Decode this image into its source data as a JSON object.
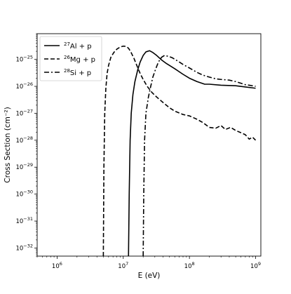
{
  "chart_data": {
    "type": "line",
    "title": "",
    "xlabel": "E (eV)",
    "ylabel": "Cross Section (cm⁻²)",
    "xscale": "log",
    "yscale": "log",
    "xlim": [
      500000,
      1200000000
    ],
    "ylim": [
      5e-33,
      9e-25
    ],
    "xticks": [
      {
        "value": 1000000,
        "mantissa": "10",
        "exp": "6"
      },
      {
        "value": 10000000,
        "mantissa": "10",
        "exp": "7"
      },
      {
        "value": 100000000,
        "mantissa": "10",
        "exp": "8"
      },
      {
        "value": 1000000000,
        "mantissa": "10",
        "exp": "9"
      }
    ],
    "yticks": [
      {
        "value": 1e-32,
        "mantissa": "10",
        "exp": "−32"
      },
      {
        "value": 1e-31,
        "mantissa": "10",
        "exp": "−31"
      },
      {
        "value": 1e-30,
        "mantissa": "10",
        "exp": "−30"
      },
      {
        "value": 1e-29,
        "mantissa": "10",
        "exp": "−29"
      },
      {
        "value": 1e-28,
        "mantissa": "10",
        "exp": "−28"
      },
      {
        "value": 1e-27,
        "mantissa": "10",
        "exp": "−27"
      },
      {
        "value": 1e-26,
        "mantissa": "10",
        "exp": "−26"
      },
      {
        "value": 1e-25,
        "mantissa": "10",
        "exp": "−25"
      }
    ],
    "grid": false,
    "legend_position": "top-left",
    "series": [
      {
        "name": "27Al + p",
        "label_sup": "27",
        "label_rest": "Al + p",
        "color": "#000000",
        "style": "solid",
        "x": [
          12000000,
          12300000,
          12700000,
          13200000,
          14000000,
          15000000,
          16500000,
          18000000,
          20000000,
          22000000,
          25000000,
          28000000,
          32000000,
          38000000,
          45000000,
          60000000,
          80000000,
          100000000,
          130000000,
          170000000,
          200000000,
          300000000,
          500000000,
          700000000,
          1000000000
        ],
        "y": [
          5e-33,
          1e-30,
          1e-28,
          1e-27,
          5e-27,
          1.5e-26,
          4e-26,
          8e-26,
          1.4e-25,
          1.9e-25,
          2.1e-25,
          1.8e-25,
          1.4e-25,
          9.5e-26,
          7e-26,
          4.5e-26,
          2.8e-26,
          2e-26,
          1.5e-26,
          1.2e-26,
          1.2e-26,
          1.1e-26,
          1.05e-26,
          9.5e-27,
          8.5e-27
        ]
      },
      {
        "name": "26Mg + p",
        "label_sup": "26",
        "label_rest": "Mg + p",
        "color": "#000000",
        "style": "dashed",
        "x": [
          5000000,
          5100000,
          5250000,
          5450000,
          5700000,
          6000000,
          6500000,
          7200000,
          8000000,
          9000000,
          10000000,
          11000000,
          12000000,
          13000000,
          14500000,
          16000000,
          18000000,
          20000000,
          23000000,
          27000000,
          32000000,
          40000000,
          50000000,
          60000000,
          80000000,
          100000000,
          130000000,
          160000000,
          200000000,
          250000000,
          300000000,
          350000000,
          420000000,
          500000000,
          600000000,
          700000000,
          800000000,
          900000000,
          1000000000
        ],
        "y": [
          5e-33,
          1e-29,
          1e-27,
          8e-27,
          3e-26,
          6e-26,
          1.2e-25,
          1.8e-25,
          2.4e-25,
          2.9e-25,
          3.1e-25,
          3.05e-25,
          2.6e-25,
          1.9e-25,
          1.1e-25,
          6e-26,
          3e-26,
          1.8e-26,
          1e-26,
          6e-27,
          4e-27,
          2.5e-27,
          1.6e-27,
          1.2e-27,
          9e-28,
          8e-28,
          6e-28,
          4.5e-28,
          3e-28,
          2.8e-28,
          3.5e-28,
          2.5e-28,
          3e-28,
          2.3e-28,
          1.9e-28,
          1.6e-28,
          1.1e-28,
          1.3e-28,
          1e-28
        ]
      },
      {
        "name": "28Si + p",
        "label_sup": "28",
        "label_rest": "Si + p",
        "color": "#000000",
        "style": "dashdot",
        "x": [
          20000000,
          20400000,
          21000000,
          22000000,
          24000000,
          26000000,
          28000000,
          31000000,
          34000000,
          38000000,
          42000000,
          48000000,
          55000000,
          65000000,
          80000000,
          100000000,
          130000000,
          160000000,
          200000000,
          250000000,
          300000000,
          400000000,
          500000000,
          600000000,
          700000000,
          800000000,
          900000000,
          1000000000
        ],
        "y": [
          5e-33,
          1e-30,
          1e-28,
          1e-27,
          4e-27,
          1e-26,
          2.2e-26,
          4.5e-26,
          8e-26,
          1.2e-25,
          1.4e-25,
          1.3e-25,
          1.15e-25,
          9e-26,
          6.5e-26,
          4.8e-26,
          3.3e-26,
          2.6e-26,
          2.2e-26,
          1.9e-26,
          1.8e-26,
          1.7e-26,
          1.5e-26,
          1.3e-26,
          1.15e-26,
          1.1e-26,
          1.05e-26,
          1e-26
        ]
      }
    ]
  }
}
